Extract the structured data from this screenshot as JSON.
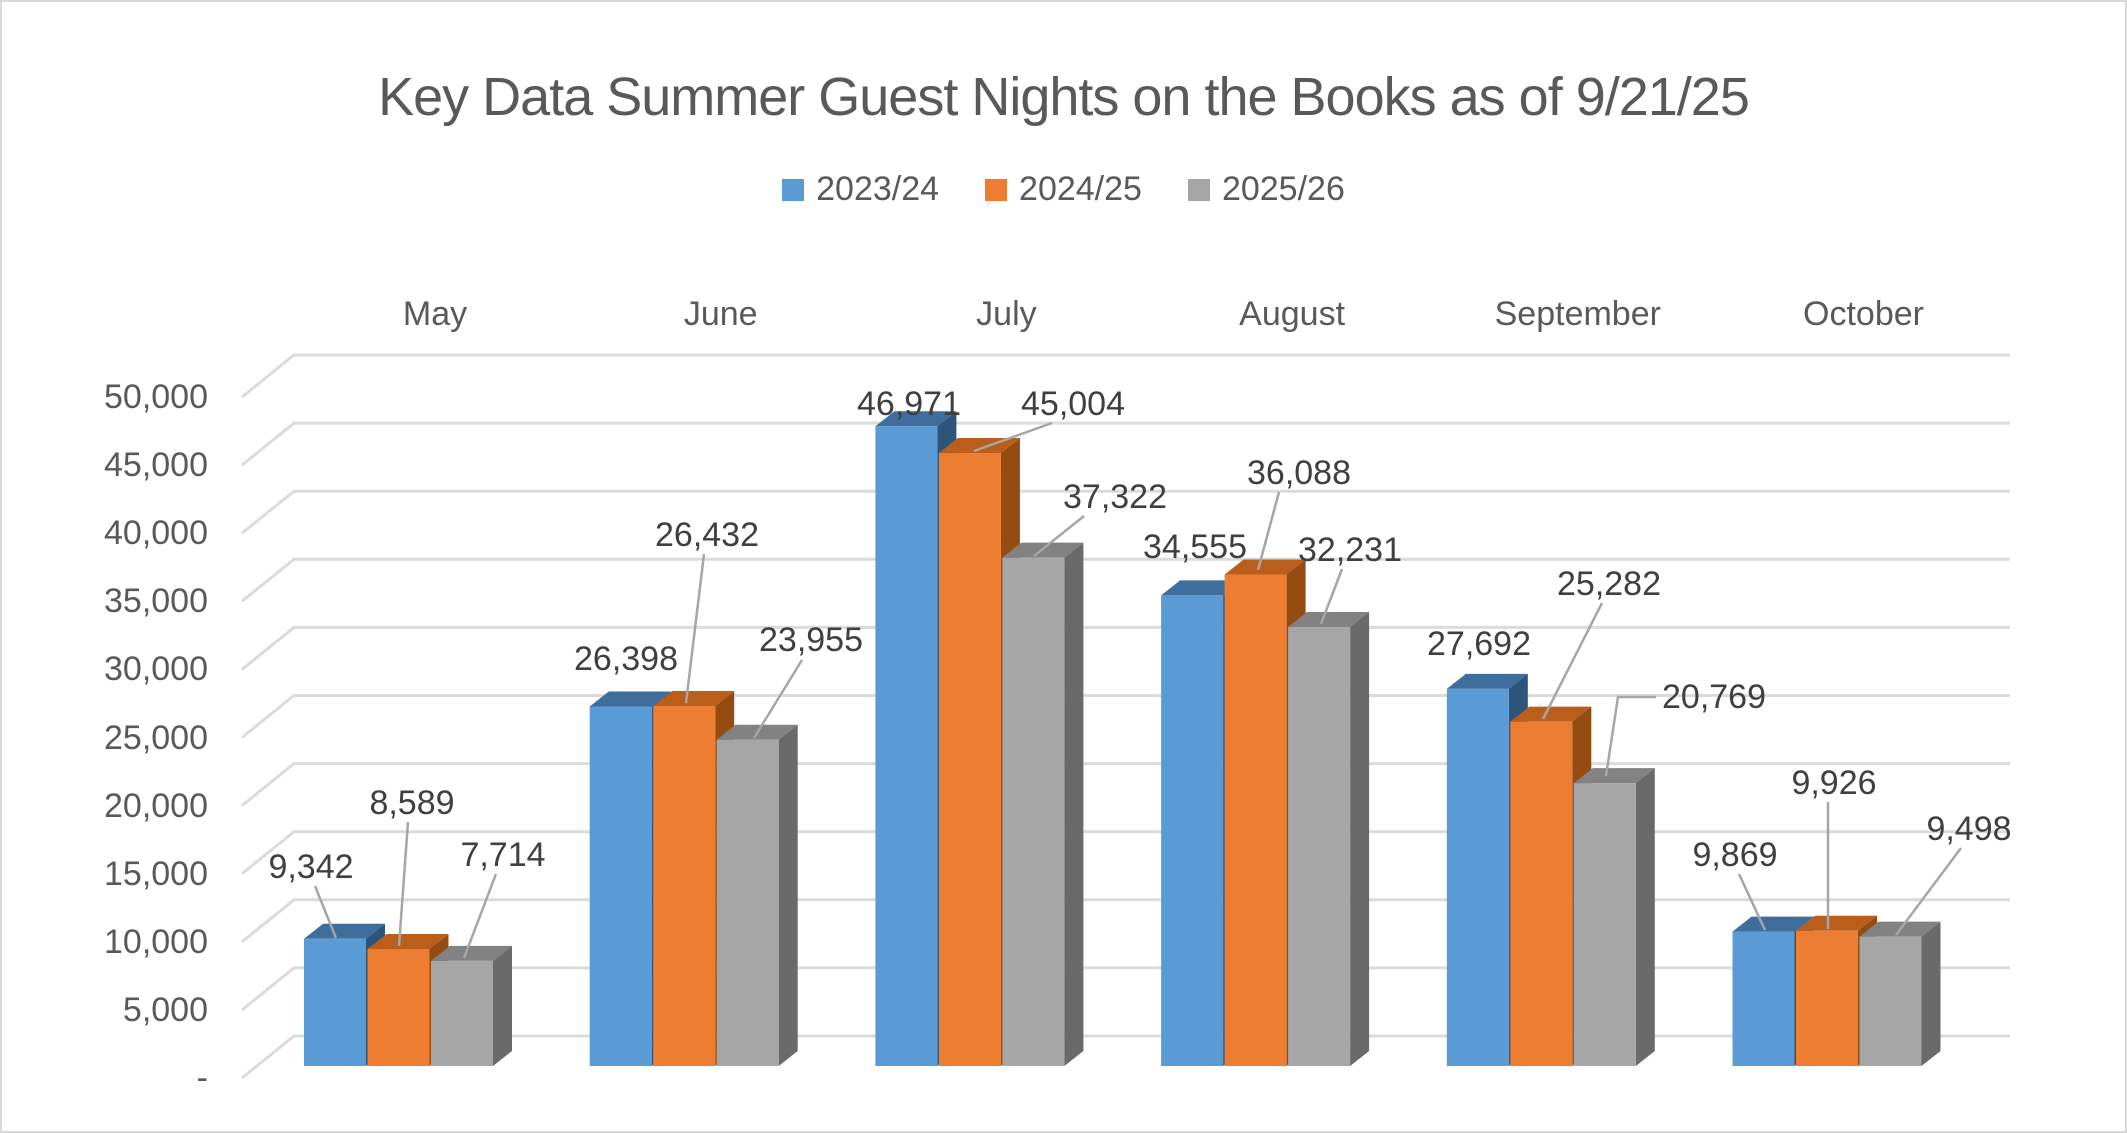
{
  "title": "Key Data Summer Guest Nights on the Books as of 9/21/25",
  "legend": {
    "position": "top",
    "items": [
      {
        "label": "2023/24",
        "color": "#5B9BD5"
      },
      {
        "label": "2024/25",
        "color": "#ED7D31"
      },
      {
        "label": "2025/26",
        "color": "#A5A5A5"
      }
    ]
  },
  "y_axis": {
    "tick_labels": [
      "50,000",
      "45,000",
      "40,000",
      "35,000",
      "30,000",
      "25,000",
      "20,000",
      "15,000",
      "10,000",
      "5,000",
      "-"
    ],
    "tick_values": [
      50000,
      45000,
      40000,
      35000,
      30000,
      25000,
      20000,
      15000,
      10000,
      5000,
      0
    ]
  },
  "chart_data": {
    "type": "bar",
    "subtype": "3d-clustered-column",
    "title": "Key Data Summer Guest Nights on the Books as of 9/21/25",
    "categories": [
      "May",
      "June",
      "July",
      "August",
      "September",
      "October"
    ],
    "series": [
      {
        "name": "2023/24",
        "color": "#5B9BD5",
        "values": [
          9342,
          26398,
          46971,
          34555,
          27692,
          9869
        ]
      },
      {
        "name": "2024/25",
        "color": "#ED7D31",
        "values": [
          8589,
          26432,
          45004,
          36088,
          25282,
          9926
        ]
      },
      {
        "name": "2025/26",
        "color": "#A5A5A5",
        "values": [
          7714,
          23955,
          37322,
          32231,
          20769,
          9498
        ]
      }
    ],
    "ylim": [
      0,
      50000
    ],
    "ytick_step": 5000,
    "gridlines": true,
    "data_labels": true,
    "legend_position": "top"
  },
  "style": {
    "grid_color": "#DBDBDB",
    "leader_color": "#A6A6A6",
    "title_color": "#595959",
    "axis_text_color": "#595959",
    "data_label_color": "#3F3F3F",
    "bar_faces": [
      {
        "front": "#5B9BD5",
        "top": "#3F6E9D",
        "side": "#2E5479"
      },
      {
        "front": "#ED7D31",
        "top": "#BA5E1B",
        "side": "#944C11"
      },
      {
        "front": "#A6A6A6",
        "top": "#828282",
        "side": "#6A6A6A"
      }
    ]
  }
}
